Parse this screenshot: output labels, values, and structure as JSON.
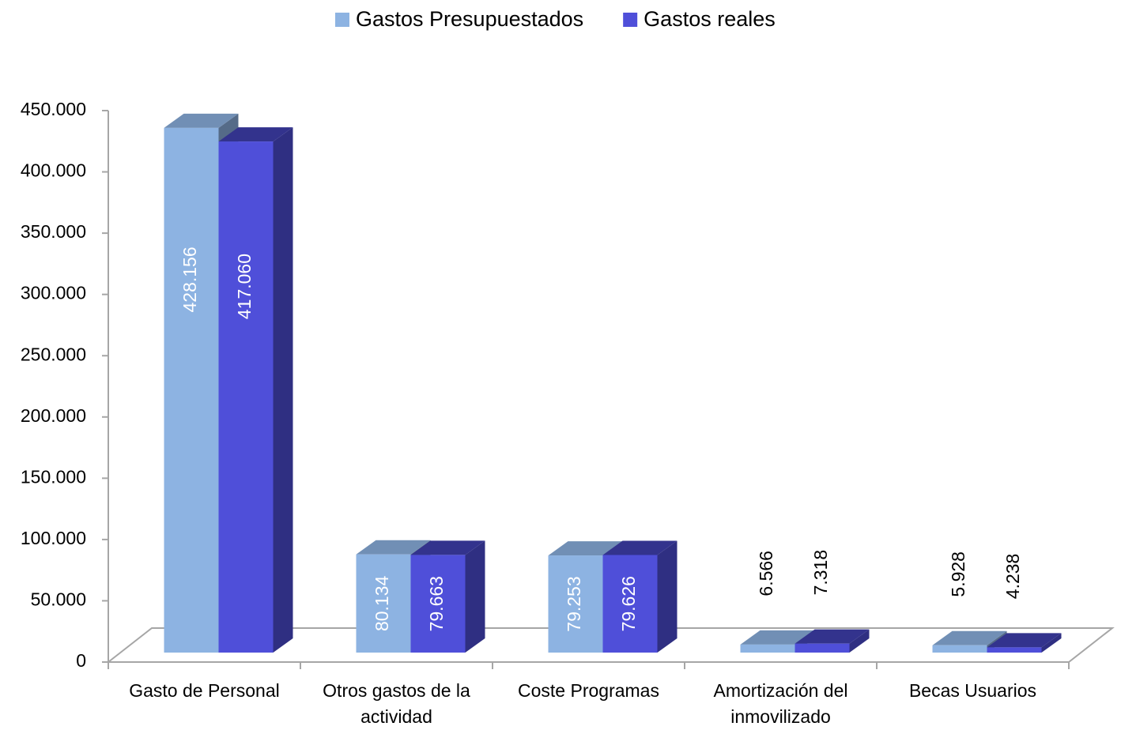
{
  "chart_data": {
    "type": "bar3d",
    "categories": [
      "Gasto de Personal",
      "Otros gastos de la actividad",
      "Coste Programas",
      "Amortización del inmovilizado",
      "Becas Usuarios"
    ],
    "series": [
      {
        "name": "Gastos Presupuestados",
        "color": "#8db3e2",
        "values": [
          428156,
          80134,
          79253,
          6566,
          5928
        ],
        "value_labels": [
          "428.156",
          "80.134",
          "79.253",
          "6.566",
          "5.928"
        ]
      },
      {
        "name": "Gastos reales",
        "color": "#4f4fd9",
        "values": [
          417060,
          79663,
          79626,
          7318,
          4238
        ],
        "value_labels": [
          "417.060",
          "79.663",
          "79.626",
          "7.318",
          "4.238"
        ]
      }
    ],
    "ylim": [
      0,
      450000
    ],
    "yticks": [
      {
        "value": 0,
        "label": "0"
      },
      {
        "value": 50000,
        "label": "50.000"
      },
      {
        "value": 100000,
        "label": "100.000"
      },
      {
        "value": 150000,
        "label": "150.000"
      },
      {
        "value": 200000,
        "label": "200.000"
      },
      {
        "value": 250000,
        "label": "250.000"
      },
      {
        "value": 300000,
        "label": "300.000"
      },
      {
        "value": 350000,
        "label": "350.000"
      },
      {
        "value": 400000,
        "label": "400.000"
      },
      {
        "value": 450000,
        "label": "450.000"
      }
    ],
    "legend": "top"
  }
}
